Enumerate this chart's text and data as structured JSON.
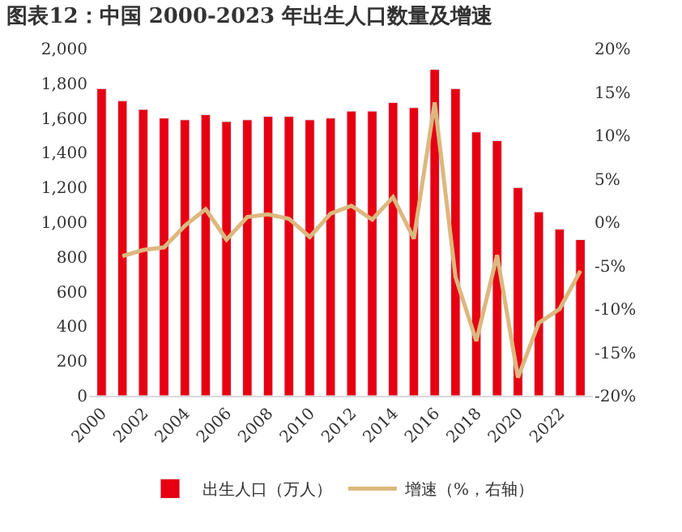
{
  "chart_data": {
    "type": "bar",
    "title": "图表12：中国 2000-2023 年出生人口数量及增速",
    "x": [
      2000,
      2001,
      2002,
      2003,
      2004,
      2005,
      2006,
      2007,
      2008,
      2009,
      2010,
      2011,
      2012,
      2013,
      2014,
      2015,
      2016,
      2017,
      2018,
      2019,
      2020,
      2021,
      2022,
      2023
    ],
    "xlim": [
      1999.4,
      2023.6
    ],
    "xticks": [
      2000,
      2002,
      2004,
      2006,
      2008,
      2010,
      2012,
      2014,
      2016,
      2018,
      2020,
      2022
    ],
    "ylim": [
      0,
      2000
    ],
    "yticks": [
      {
        "value": 0,
        "label": "0"
      },
      {
        "value": 200,
        "label": "200"
      },
      {
        "value": 400,
        "label": "400"
      },
      {
        "value": 600,
        "label": "600"
      },
      {
        "value": 800,
        "label": "800"
      },
      {
        "value": 1000,
        "label": "1,000"
      },
      {
        "value": 1200,
        "label": "1,200"
      },
      {
        "value": 1400,
        "label": "1,400"
      },
      {
        "value": 1600,
        "label": "1,600"
      },
      {
        "value": 1800,
        "label": "1,800"
      },
      {
        "value": 2000,
        "label": "2,000"
      }
    ],
    "y2lim": [
      -20,
      20
    ],
    "y2ticks": [
      {
        "value": -20,
        "label": "-20%"
      },
      {
        "value": -15,
        "label": "-15%"
      },
      {
        "value": -10,
        "label": "-10%"
      },
      {
        "value": -5,
        "label": "-5%"
      },
      {
        "value": 0,
        "label": "0%"
      },
      {
        "value": 5,
        "label": "5%"
      },
      {
        "value": 10,
        "label": "10%"
      },
      {
        "value": 15,
        "label": "15%"
      },
      {
        "value": 20,
        "label": "20%"
      }
    ],
    "legend": "bottom",
    "series": [
      {
        "name": "出生人口（万人）",
        "color": "#e60012",
        "values": [
          1770,
          1700,
          1650,
          1600,
          1590,
          1620,
          1580,
          1590,
          1610,
          1610,
          1590,
          1600,
          1640,
          1640,
          1690,
          1660,
          1880,
          1770,
          1520,
          1470,
          1200,
          1060,
          960,
          900
        ]
      },
      {
        "name": "增速（%，右轴）",
        "type": "line",
        "axis": "y2",
        "color": "#dcb87f",
        "values": [
          null,
          -3.9,
          -3.2,
          -2.9,
          -0.4,
          1.5,
          -2.0,
          0.6,
          0.9,
          0.4,
          -1.7,
          1.0,
          1.9,
          0.3,
          2.9,
          -1.9,
          13.8,
          -6.3,
          -13.7,
          -3.8,
          -17.9,
          -11.6,
          -10.0,
          -5.6
        ]
      }
    ]
  }
}
